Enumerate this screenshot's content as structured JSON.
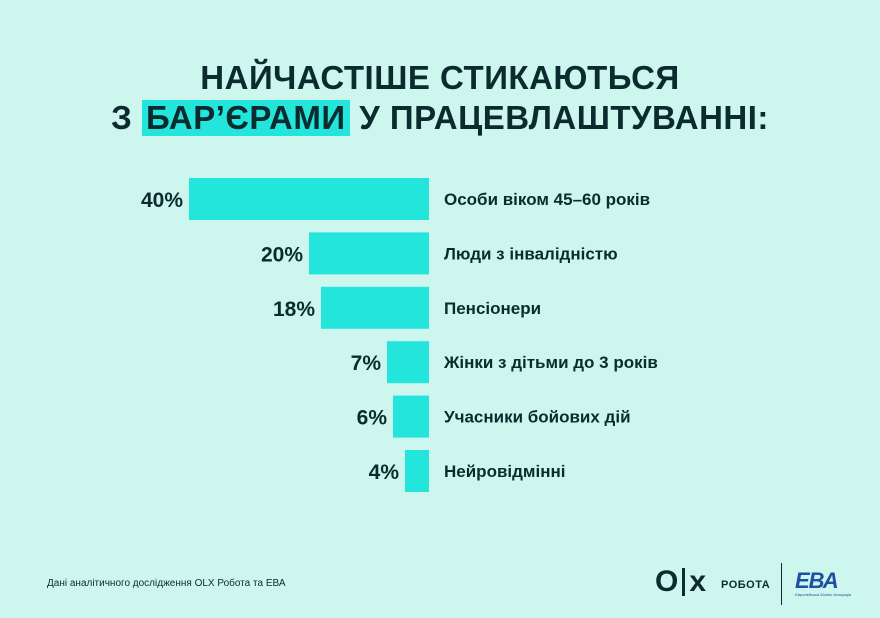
{
  "title": {
    "line1": "НАЙЧАСТІШЕ СТИКАЮТЬСЯ",
    "line2_pre": "З",
    "line2_highlight": "БАР’ЄРАМИ",
    "line2_post": "У ПРАЦЕВЛАШТУВАННІ:"
  },
  "chart_data": {
    "type": "bar",
    "orientation": "horizontal",
    "categories": [
      "Особи віком 45–60 років",
      "Люди з інвалідністю",
      "Пенсіонери",
      "Жінки з дітьми до 3 років",
      "Учасники бойових дій",
      "Нейровідмінні"
    ],
    "values": [
      40,
      20,
      18,
      7,
      6,
      4
    ],
    "value_labels": [
      "40%",
      "20%",
      "18%",
      "7%",
      "6%",
      "4%"
    ],
    "unit": "%",
    "xlim": [
      0,
      40
    ],
    "bar_color": "#23e5dc",
    "grid": false
  },
  "footer": {
    "note": "Дані аналітичного дослідження OLX Робота та ЕВА",
    "olx_o": "O",
    "olx_x": "x",
    "robota": "РОБОТА",
    "eva": "ЕВА",
    "eva_sub": "Європейська Бізнес Асоціація"
  },
  "colors": {
    "background": "#cdf7ee",
    "accent": "#23e5dc",
    "text": "#0b2b2e",
    "eva_blue": "#1d4fa3"
  }
}
